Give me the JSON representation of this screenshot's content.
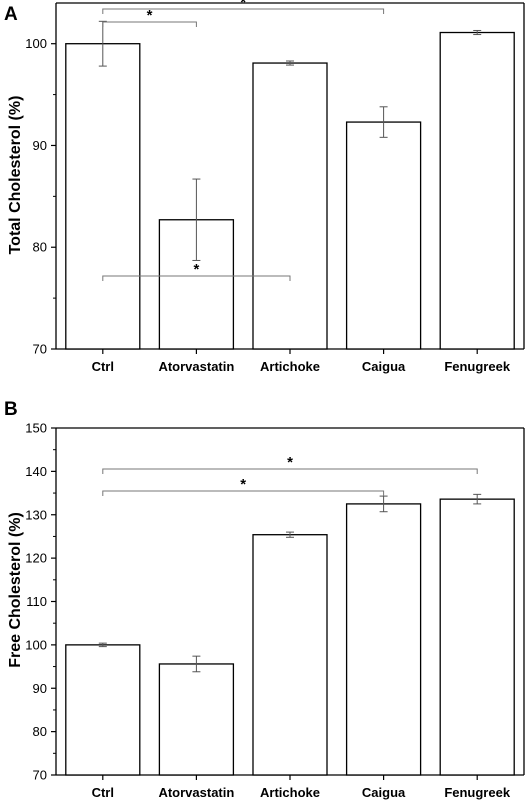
{
  "chart_data": [
    {
      "panel": "A",
      "type": "bar",
      "ylabel": "Total Cholesterol (%)",
      "xlabel": "",
      "ylim": [
        70,
        104
      ],
      "yticks": [
        70,
        80,
        90,
        100
      ],
      "categories": [
        "Ctrl",
        "Atorvastatin",
        "Artichoke",
        "Caigua",
        "Fenugreek"
      ],
      "series": [
        {
          "values": [
            100,
            82.7,
            98.1,
            92.3,
            101.1
          ],
          "errors": [
            2.2,
            4.0,
            0.2,
            1.5,
            0.2
          ]
        }
      ],
      "significance": [
        {
          "from": 0,
          "to": 1,
          "label": "*"
        },
        {
          "from": 0,
          "to": 3,
          "label": "*"
        }
      ]
    },
    {
      "panel": "B",
      "type": "bar",
      "ylabel": "Free Cholesterol (%)",
      "xlabel": "",
      "ylim": [
        70,
        150
      ],
      "yticks": [
        70,
        80,
        90,
        100,
        110,
        120,
        130,
        140,
        150
      ],
      "categories": [
        "Ctrl",
        "Atorvastatin",
        "Artichoke",
        "Caigua",
        "Fenugreek"
      ],
      "series": [
        {
          "values": [
            100,
            95.6,
            125.4,
            132.5,
            133.6
          ],
          "errors": [
            0.4,
            1.8,
            0.6,
            1.8,
            1.1
          ]
        }
      ],
      "significance": [
        {
          "from": 0,
          "to": 2,
          "label": "*"
        },
        {
          "from": 0,
          "to": 3,
          "label": "*"
        },
        {
          "from": 0,
          "to": 4,
          "label": "*"
        }
      ]
    }
  ]
}
